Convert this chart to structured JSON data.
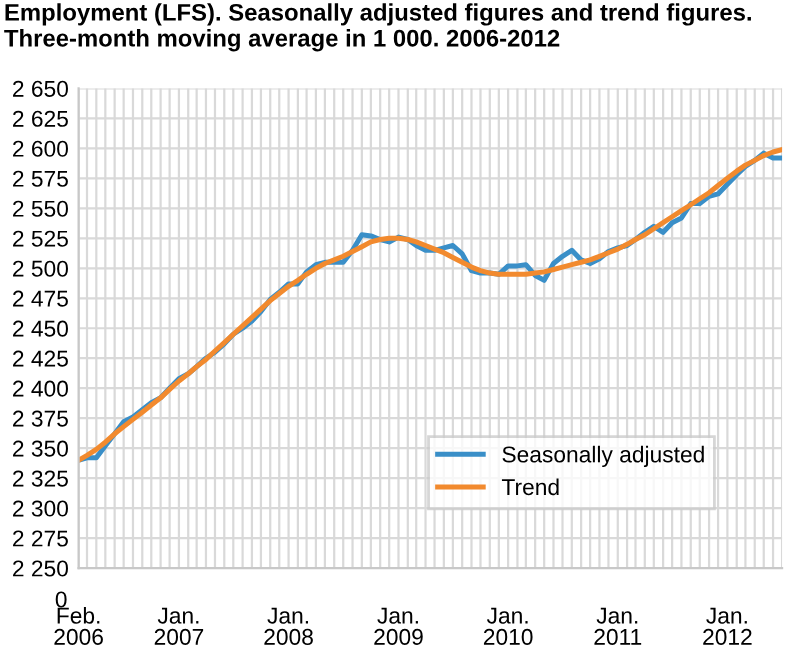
{
  "chart_data": {
    "type": "line",
    "title": "Employment (LFS). Seasonally adjusted figures and trend figures.\nThree-month moving average in 1 000. 2006-2012",
    "x": [
      "2006-02",
      "2006-03",
      "2006-04",
      "2006-05",
      "2006-06",
      "2006-07",
      "2006-08",
      "2006-09",
      "2006-10",
      "2006-11",
      "2006-12",
      "2007-01",
      "2007-02",
      "2007-03",
      "2007-04",
      "2007-05",
      "2007-06",
      "2007-07",
      "2007-08",
      "2007-09",
      "2007-10",
      "2007-11",
      "2007-12",
      "2008-01",
      "2008-02",
      "2008-03",
      "2008-04",
      "2008-05",
      "2008-06",
      "2008-07",
      "2008-08",
      "2008-09",
      "2008-10",
      "2008-11",
      "2008-12",
      "2009-01",
      "2009-02",
      "2009-03",
      "2009-04",
      "2009-05",
      "2009-06",
      "2009-07",
      "2009-08",
      "2009-09",
      "2009-10",
      "2009-11",
      "2009-12",
      "2010-01",
      "2010-02",
      "2010-03",
      "2010-04",
      "2010-05",
      "2010-06",
      "2010-07",
      "2010-08",
      "2010-09",
      "2010-10",
      "2010-11",
      "2010-12",
      "2011-01",
      "2011-02",
      "2011-03",
      "2011-04",
      "2011-05",
      "2011-06",
      "2011-07",
      "2011-08",
      "2011-09",
      "2011-10",
      "2011-11",
      "2011-12",
      "2012-01",
      "2012-02",
      "2012-03",
      "2012-04",
      "2012-05",
      "2012-06",
      "2012-07"
    ],
    "series": [
      {
        "name": "Seasonally adjusted",
        "color": "#3a8fc8",
        "values": [
          2340,
          2342,
          2342,
          2352,
          2362,
          2372,
          2376,
          2382,
          2388,
          2392,
          2400,
          2408,
          2412,
          2418,
          2425,
          2430,
          2437,
          2445,
          2450,
          2456,
          2464,
          2474,
          2480,
          2487,
          2487,
          2497,
          2503,
          2505,
          2505,
          2505,
          2515,
          2528,
          2527,
          2524,
          2522,
          2526,
          2524,
          2519,
          2515,
          2515,
          2517,
          2519,
          2512,
          2498,
          2496,
          2496,
          2495,
          2502,
          2502,
          2503,
          2494,
          2490,
          2504,
          2510,
          2515,
          2507,
          2504,
          2508,
          2514,
          2517,
          2519,
          2524,
          2530,
          2535,
          2530,
          2538,
          2542,
          2554,
          2554,
          2560,
          2562,
          2570,
          2578,
          2585,
          2590,
          2596,
          2592,
          2592
        ]
      },
      {
        "name": "Trend",
        "color": "#f28a2e",
        "values": [
          2340,
          2344,
          2349,
          2355,
          2362,
          2368,
          2374,
          2380,
          2386,
          2392,
          2399,
          2406,
          2412,
          2418,
          2424,
          2431,
          2438,
          2445,
          2452,
          2459,
          2466,
          2473,
          2479,
          2485,
          2490,
          2495,
          2500,
          2504,
          2507,
          2510,
          2514,
          2518,
          2522,
          2524,
          2525,
          2525,
          2524,
          2522,
          2519,
          2516,
          2513,
          2509,
          2505,
          2501,
          2498,
          2496,
          2495,
          2495,
          2495,
          2495,
          2496,
          2497,
          2499,
          2501,
          2503,
          2505,
          2507,
          2510,
          2513,
          2516,
          2520,
          2524,
          2528,
          2533,
          2538,
          2543,
          2548,
          2553,
          2558,
          2563,
          2569,
          2575,
          2581,
          2586,
          2590,
          2594,
          2597,
          2599
        ]
      }
    ],
    "xlim": [
      "2006-02",
      "2012-07"
    ],
    "xticks": [
      {
        "value": "2006-02",
        "label": "Feb.\n2006"
      },
      {
        "value": "2006-03",
        "label": null
      },
      {
        "value": "2006-04",
        "label": null
      },
      {
        "value": "2006-05",
        "label": null
      },
      {
        "value": "2006-06",
        "label": null
      },
      {
        "value": "2006-07",
        "label": null
      },
      {
        "value": "2006-08",
        "label": null
      },
      {
        "value": "2006-09",
        "label": null
      },
      {
        "value": "2006-10",
        "label": null
      },
      {
        "value": "2006-11",
        "label": null
      },
      {
        "value": "2006-12",
        "label": null
      },
      {
        "value": "2007-01",
        "label": "Jan.\n2007"
      },
      {
        "value": "2007-02",
        "label": null
      },
      {
        "value": "2007-03",
        "label": null
      },
      {
        "value": "2007-04",
        "label": null
      },
      {
        "value": "2007-05",
        "label": null
      },
      {
        "value": "2007-06",
        "label": null
      },
      {
        "value": "2007-07",
        "label": null
      },
      {
        "value": "2007-08",
        "label": null
      },
      {
        "value": "2007-09",
        "label": null
      },
      {
        "value": "2007-10",
        "label": null
      },
      {
        "value": "2007-11",
        "label": null
      },
      {
        "value": "2007-12",
        "label": null
      },
      {
        "value": "2008-01",
        "label": "Jan.\n2008"
      },
      {
        "value": "2008-02",
        "label": null
      },
      {
        "value": "2008-03",
        "label": null
      },
      {
        "value": "2008-04",
        "label": null
      },
      {
        "value": "2008-05",
        "label": null
      },
      {
        "value": "2008-06",
        "label": null
      },
      {
        "value": "2008-07",
        "label": null
      },
      {
        "value": "2008-08",
        "label": null
      },
      {
        "value": "2008-09",
        "label": null
      },
      {
        "value": "2008-10",
        "label": null
      },
      {
        "value": "2008-11",
        "label": null
      },
      {
        "value": "2008-12",
        "label": null
      },
      {
        "value": "2009-01",
        "label": "Jan.\n2009"
      },
      {
        "value": "2009-02",
        "label": null
      },
      {
        "value": "2009-03",
        "label": null
      },
      {
        "value": "2009-04",
        "label": null
      },
      {
        "value": "2009-05",
        "label": null
      },
      {
        "value": "2009-06",
        "label": null
      },
      {
        "value": "2009-07",
        "label": null
      },
      {
        "value": "2009-08",
        "label": null
      },
      {
        "value": "2009-09",
        "label": null
      },
      {
        "value": "2009-10",
        "label": null
      },
      {
        "value": "2009-11",
        "label": null
      },
      {
        "value": "2009-12",
        "label": null
      },
      {
        "value": "2010-01",
        "label": "Jan.\n2010"
      },
      {
        "value": "2010-02",
        "label": null
      },
      {
        "value": "2010-03",
        "label": null
      },
      {
        "value": "2010-04",
        "label": null
      },
      {
        "value": "2010-05",
        "label": null
      },
      {
        "value": "2010-06",
        "label": null
      },
      {
        "value": "2010-07",
        "label": null
      },
      {
        "value": "2010-08",
        "label": null
      },
      {
        "value": "2010-09",
        "label": null
      },
      {
        "value": "2010-10",
        "label": null
      },
      {
        "value": "2010-11",
        "label": null
      },
      {
        "value": "2010-12",
        "label": null
      },
      {
        "value": "2011-01",
        "label": "Jan.\n2011"
      },
      {
        "value": "2011-02",
        "label": null
      },
      {
        "value": "2011-03",
        "label": null
      },
      {
        "value": "2011-04",
        "label": null
      },
      {
        "value": "2011-05",
        "label": null
      },
      {
        "value": "2011-06",
        "label": null
      },
      {
        "value": "2011-07",
        "label": null
      },
      {
        "value": "2011-08",
        "label": null
      },
      {
        "value": "2011-09",
        "label": null
      },
      {
        "value": "2011-10",
        "label": null
      },
      {
        "value": "2011-11",
        "label": null
      },
      {
        "value": "2011-12",
        "label": null
      },
      {
        "value": "2012-01",
        "label": "Jan.\n2012"
      },
      {
        "value": "2012-02",
        "label": null
      },
      {
        "value": "2012-03",
        "label": null
      },
      {
        "value": "2012-04",
        "label": null
      },
      {
        "value": "2012-05",
        "label": null
      },
      {
        "value": "2012-06",
        "label": null
      },
      {
        "value": "2012-07",
        "label": null
      }
    ],
    "ylim": [
      2250,
      2650
    ],
    "yticks": [
      {
        "value": 2250,
        "label": "2 250"
      },
      {
        "value": 2275,
        "label": "2 275"
      },
      {
        "value": 2300,
        "label": "2 300"
      },
      {
        "value": 2325,
        "label": "2 325"
      },
      {
        "value": 2350,
        "label": "2 350"
      },
      {
        "value": 2375,
        "label": "2 375"
      },
      {
        "value": 2400,
        "label": "2 400"
      },
      {
        "value": 2425,
        "label": "2 425"
      },
      {
        "value": 2450,
        "label": "2 450"
      },
      {
        "value": 2475,
        "label": "2 475"
      },
      {
        "value": 2500,
        "label": "2 500"
      },
      {
        "value": 2525,
        "label": "2 525"
      },
      {
        "value": 2550,
        "label": "2 550"
      },
      {
        "value": 2575,
        "label": "2 575"
      },
      {
        "value": 2600,
        "label": "2 600"
      },
      {
        "value": 2625,
        "label": "2 625"
      },
      {
        "value": 2650,
        "label": "2 650"
      }
    ],
    "annotations": [
      "0"
    ],
    "grid": true,
    "legend": "bottom right",
    "line_style": "solid",
    "marker": "none"
  }
}
